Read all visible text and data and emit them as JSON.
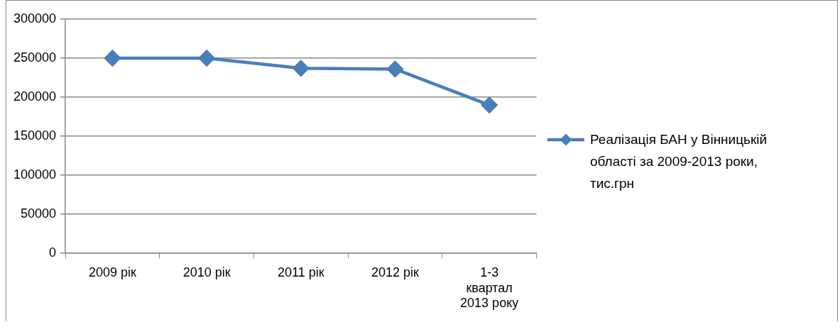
{
  "chart_data": {
    "type": "line",
    "categories": [
      "2009 рік",
      "2010 рік",
      "2011 рік",
      "2012 рік",
      "1-3 квартал 2013 року"
    ],
    "series": [
      {
        "name": "Реалізація БАН у Вінницькій області за 2009-2013 роки, тис.грн",
        "color": "#4a7ebb",
        "values": [
          250000,
          250000,
          237000,
          236000,
          190000
        ]
      }
    ],
    "ylim": [
      0,
      300000
    ],
    "yticks": [
      0,
      50000,
      100000,
      150000,
      200000,
      250000,
      300000
    ],
    "grid": "y",
    "legend": "right",
    "marker": "diamond",
    "line_style": "solid"
  }
}
